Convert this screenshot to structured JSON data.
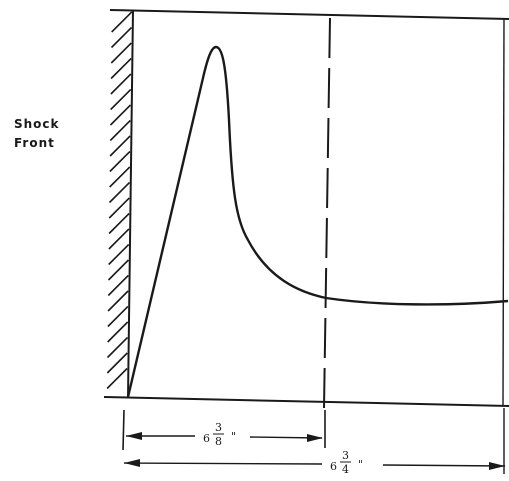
{
  "label": {
    "line1": "Shock",
    "line2": "Front"
  },
  "dimensions": [
    {
      "whole": "6",
      "numerator": "3",
      "denominator": "8",
      "unit": "\""
    },
    {
      "whole": "6",
      "numerator": "3",
      "denominator": "4",
      "unit": "\""
    }
  ],
  "colors": {
    "ink": "#1a1a1a",
    "background": "#ffffff"
  }
}
